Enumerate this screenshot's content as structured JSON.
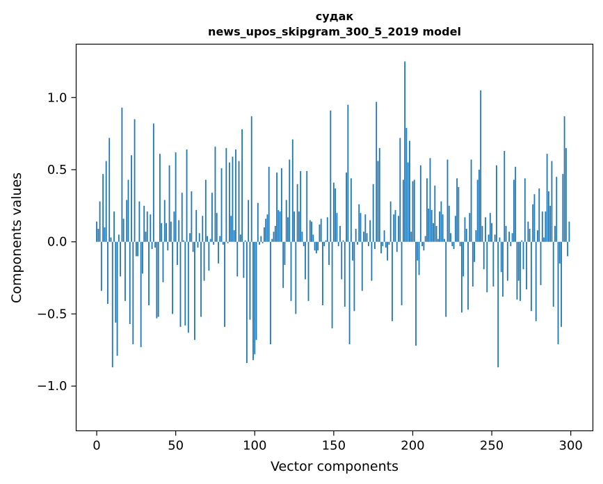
{
  "chart_data": {
    "type": "bar",
    "title": "судак",
    "subtitle": "news_upos_skipgram_300_5_2019 model",
    "xlabel": "Vector components",
    "ylabel": "Components values",
    "xlim": [
      -13,
      314
    ],
    "ylim": [
      -1.31,
      1.37
    ],
    "x_ticks": [
      0,
      50,
      100,
      150,
      200,
      250,
      300
    ],
    "y_ticks": [
      -1.0,
      -0.5,
      0.0,
      0.5,
      1.0
    ],
    "y_tick_labels": [
      "−1.0",
      "−0.5",
      "0.0",
      "0.5",
      "1.0"
    ],
    "bar_color": "#1f77b4",
    "grid": false,
    "values": [
      0.14,
      0.09,
      0.28,
      -0.34,
      0.47,
      0.1,
      0.56,
      -0.43,
      0.72,
      0.03,
      -0.87,
      0.21,
      -0.56,
      -0.79,
      0.05,
      -0.24,
      0.93,
      0.16,
      -0.41,
      0.29,
      0.43,
      -0.57,
      0.6,
      -0.71,
      0.85,
      -0.1,
      -0.1,
      0.28,
      -0.73,
      -0.22,
      0.25,
      0.07,
      0.21,
      -0.44,
      0.19,
      -0.05,
      0.82,
      -0.04,
      -0.53,
      -0.52,
      0.61,
      0.13,
      -0.28,
      0.29,
      0.13,
      -0.06,
      0.53,
      0.14,
      -0.5,
      0.21,
      0.62,
      -0.16,
      0.15,
      -0.59,
      0.34,
      0.01,
      -0.58,
      0.64,
      -0.63,
      0.06,
      0.35,
      -0.07,
      -0.68,
      0.22,
      -0.04,
      0.06,
      -0.52,
      0.18,
      -0.27,
      0.43,
      0.04,
      -0.2,
      0.02,
      0.34,
      -0.02,
      0.66,
      0.2,
      -0.15,
      0.04,
      0.51,
      -0.02,
      -0.59,
      0.65,
      -0.01,
      0.55,
      0.18,
      0.59,
      0.08,
      0.64,
      -0.24,
      0.56,
      0.05,
      0.78,
      -0.25,
      0.01,
      -0.84,
      0.29,
      -0.54,
      0.87,
      -0.82,
      -0.78,
      -0.68,
      0.27,
      -0.02,
      0.04,
      -0.01,
      0.1,
      0.16,
      0.19,
      0.52,
      -0.71,
      0.02,
      0.07,
      0.11,
      0.48,
      0.22,
      0.21,
      0.51,
      -0.32,
      -0.16,
      0.29,
      0.17,
      0.57,
      -0.41,
      0.71,
      0.21,
      -0.5,
      0.4,
      0.21,
      0.49,
      0.07,
      -0.03,
      -0.26,
      0.49,
      -0.41,
      0.15,
      0.14,
      0.05,
      -0.06,
      -0.08,
      -0.06,
      0.12,
      0.16,
      -0.44,
      -0.03,
      0.01,
      0.17,
      -0.16,
      0.91,
      -0.6,
      0.41,
      0.37,
      0.2,
      -0.03,
      0.11,
      -0.26,
      0.01,
      -0.45,
      0.48,
      0.95,
      -0.71,
      0.44,
      -0.13,
      -0.48,
      0.09,
      -0.02,
      0.26,
      0.2,
      -0.34,
      0.07,
      0.19,
      0.06,
      -0.03,
      0.15,
      -0.27,
      0.4,
      -0.05,
      0.97,
      0.56,
      0.65,
      -0.08,
      -0.03,
      0.08,
      -0.04,
      -0.13,
      -0.02,
      0.28,
      -0.55,
      0.19,
      0.22,
      -0.07,
      0.18,
      0.72,
      -0.44,
      0.43,
      1.25,
      0.79,
      0.55,
      0.7,
      0.07,
      0.42,
      0.43,
      -0.72,
      -0.13,
      -0.23,
      0.53,
      -0.03,
      -0.06,
      0.04,
      0.44,
      0.23,
      0.58,
      0.22,
      0.13,
      0.39,
      0.11,
      0.02,
      0.21,
      0.28,
      0.19,
      0.02,
      -0.52,
      0.57,
      0.25,
      0.06,
      -0.03,
      -0.05,
      0.18,
      0.44,
      0.38,
      -0.03,
      -0.49,
      -0.24,
      0.17,
      0.09,
      -0.47,
      0.2,
      0.57,
      -0.31,
      -0.14,
      0.08,
      0.43,
      0.5,
      1.05,
      0.11,
      -0.19,
      0.17,
      -0.35,
      0.05,
      0.2,
      0.13,
      -0.31,
      0.05,
      0.53,
      -0.87,
      0.03,
      -0.21,
      -0.38,
      0.63,
      0.11,
      -0.27,
      0.07,
      -0.03,
      0.06,
      0.43,
      0.52,
      -0.4,
      -0.27,
      -0.41,
      0.01,
      -0.19,
      0.44,
      -0.33,
      0.14,
      0.09,
      -0.48,
      0.26,
      0.33,
      -0.55,
      0.08,
      0.37,
      -0.3,
      0.21,
      0.03,
      0.21,
      0.61,
      0.35,
      0.25,
      0.56,
      -0.45,
      0.11,
      0.45,
      -0.71,
      -0.15,
      -0.59,
      0.47,
      0.87,
      0.65,
      -0.1,
      0.14
    ]
  }
}
